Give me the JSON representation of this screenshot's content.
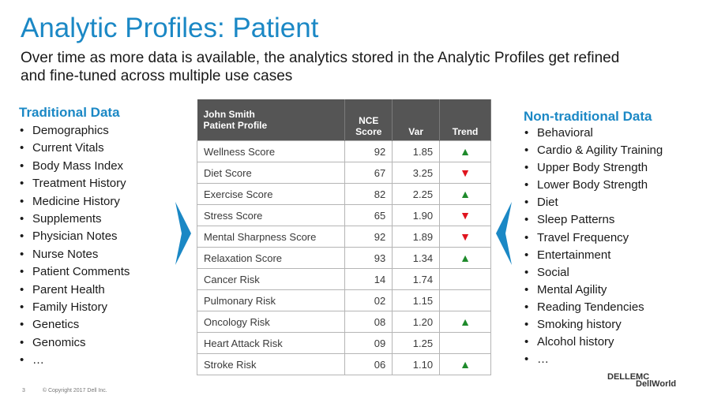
{
  "title": "Analytic Profiles: Patient",
  "subtitle_lines": [
    "Over time as more data is available, the analytics stored in the Analytic Profiles get refined",
    "and fine-tuned across multiple use cases"
  ],
  "traditional": {
    "heading": "Traditional Data",
    "items": [
      "Demographics",
      "Current Vitals",
      "Body Mass Index",
      "Treatment History",
      "Medicine History",
      "Supplements",
      "Physician Notes",
      "Nurse Notes",
      "Patient Comments",
      "Parent Health",
      "Family History",
      "Genetics",
      "Genomics",
      "…"
    ]
  },
  "non_traditional": {
    "heading": "Non-traditional Data",
    "items": [
      "Behavioral",
      "Cardio & Agility Training",
      "Upper Body Strength",
      "Lower Body Strength",
      "Diet",
      "Sleep Patterns",
      "Travel Frequency",
      "Entertainment",
      "Social",
      "Mental Agility",
      "Reading Tendencies",
      "Smoking history",
      "Alcohol history",
      "…"
    ]
  },
  "bullet": "•",
  "table": {
    "header": {
      "name_line1": "John Smith",
      "name_line2": "Patient Profile",
      "score_line1": "NCE",
      "score_line2": "Score",
      "var": "Var",
      "trend": "Trend"
    },
    "rows": [
      {
        "label": "Wellness Score",
        "score": "92",
        "var": "1.85",
        "trend": "▲",
        "dir": "up"
      },
      {
        "label": "Diet Score",
        "score": "67",
        "var": "3.25",
        "trend": "▼",
        "dir": "down"
      },
      {
        "label": "Exercise Score",
        "score": "82",
        "var": "2.25",
        "trend": "▲",
        "dir": "up"
      },
      {
        "label": "Stress Score",
        "score": "65",
        "var": "1.90",
        "trend": "▼",
        "dir": "down"
      },
      {
        "label": "Mental Sharpness Score",
        "score": "92",
        "var": "1.89",
        "trend": "▼",
        "dir": "down"
      },
      {
        "label": "Relaxation Score",
        "score": "93",
        "var": "1.34",
        "trend": "▲",
        "dir": "up"
      },
      {
        "label": "Cancer Risk",
        "score": "14",
        "var": "1.74",
        "trend": "",
        "dir": ""
      },
      {
        "label": "Pulmonary Risk",
        "score": "02",
        "var": "1.15",
        "trend": "",
        "dir": ""
      },
      {
        "label": "Oncology Risk",
        "score": "08",
        "var": "1.20",
        "trend": "▲",
        "dir": "up"
      },
      {
        "label": "Heart Attack Risk",
        "score": "09",
        "var": "1.25",
        "trend": "",
        "dir": ""
      },
      {
        "label": "Stroke Risk",
        "score": "06",
        "var": "1.10",
        "trend": "▲",
        "dir": "up"
      }
    ]
  },
  "footer": {
    "page_number": "3",
    "copyright": "© Copyright 2017 Dell Inc."
  },
  "logo": {
    "line1": "DELLEMC",
    "line2": "DellWorld"
  },
  "colors": {
    "accent": "#1b88c5",
    "header_bg": "#555555",
    "up": "#1e8a2b",
    "down": "#e0141e",
    "arrow": "#1b88c5"
  }
}
